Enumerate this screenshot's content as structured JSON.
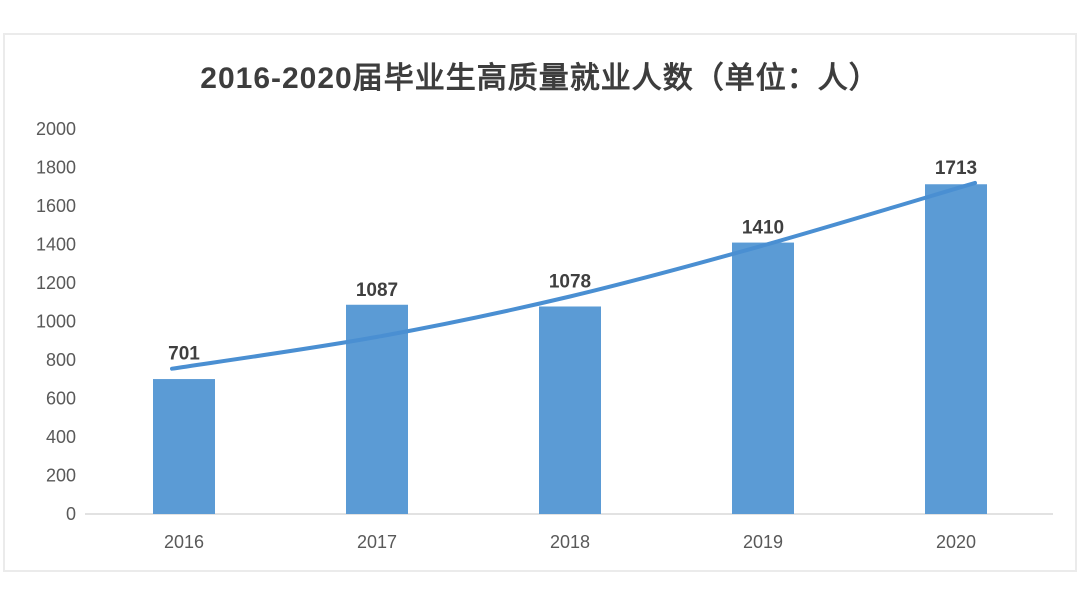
{
  "chart_data": {
    "type": "bar",
    "title": "2016-2020届毕业生高质量就业人数（单位：人）",
    "categories": [
      "2016",
      "2017",
      "2018",
      "2019",
      "2020"
    ],
    "values": [
      701,
      1087,
      1078,
      1410,
      1713
    ],
    "data_labels": [
      "701",
      "1087",
      "1078",
      "1410",
      "1713"
    ],
    "xlabel": "",
    "ylabel": "",
    "ylim": [
      0,
      2000
    ],
    "ytick_interval": 200,
    "yticks": [
      0,
      200,
      400,
      600,
      800,
      1000,
      1200,
      1400,
      1600,
      1800,
      2000
    ],
    "grid": false,
    "legend": "none",
    "trendline": {
      "style": "smooth-curve",
      "values": [
        755,
        920,
        1130,
        1395,
        1720
      ]
    },
    "colors": {
      "bar": "#5b9bd5",
      "trendline": "#4a8fd2",
      "title": "#3d3d3d",
      "data_label": "#3f3f3f",
      "tick_label": "#595959",
      "axis_line": "#d9d9d9",
      "card_border": "#ebebeb",
      "background": "#ffffff"
    }
  }
}
